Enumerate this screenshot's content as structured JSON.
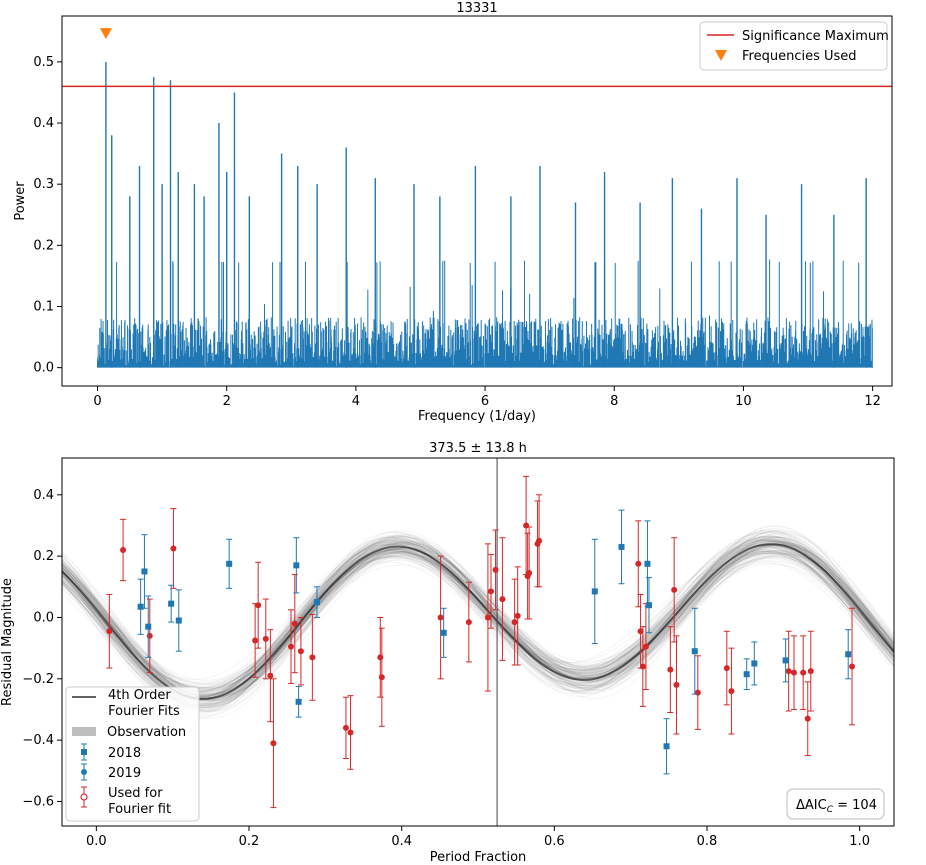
{
  "chart_data": [
    {
      "type": "line",
      "title": "13331",
      "xlabel": "Frequency (1/day)",
      "ylabel": "Power",
      "xlim": [
        -0.55,
        12.3
      ],
      "ylim": [
        -0.03,
        0.575
      ],
      "xticks": [
        "0",
        "2",
        "4",
        "6",
        "8",
        "10",
        "12"
      ],
      "yticks": [
        "0.0",
        "0.1",
        "0.2",
        "0.3",
        "0.4",
        "0.5"
      ],
      "significance_maximum": 0.46,
      "frequencies_used": [
        0.13
      ],
      "marker_y": 0.547,
      "peaks": [
        {
          "x": 0.13,
          "y": 0.5
        },
        {
          "x": 0.22,
          "y": 0.38
        },
        {
          "x": 0.5,
          "y": 0.28
        },
        {
          "x": 0.65,
          "y": 0.33
        },
        {
          "x": 0.87,
          "y": 0.475
        },
        {
          "x": 1.0,
          "y": 0.3
        },
        {
          "x": 1.13,
          "y": 0.47
        },
        {
          "x": 1.25,
          "y": 0.32
        },
        {
          "x": 1.5,
          "y": 0.3
        },
        {
          "x": 1.65,
          "y": 0.28
        },
        {
          "x": 1.88,
          "y": 0.4
        },
        {
          "x": 2.0,
          "y": 0.32
        },
        {
          "x": 2.12,
          "y": 0.45
        },
        {
          "x": 2.35,
          "y": 0.28
        },
        {
          "x": 2.85,
          "y": 0.35
        },
        {
          "x": 3.1,
          "y": 0.33
        },
        {
          "x": 3.4,
          "y": 0.3
        },
        {
          "x": 3.85,
          "y": 0.36
        },
        {
          "x": 4.3,
          "y": 0.31
        },
        {
          "x": 4.9,
          "y": 0.3
        },
        {
          "x": 5.3,
          "y": 0.28
        },
        {
          "x": 5.85,
          "y": 0.33
        },
        {
          "x": 6.4,
          "y": 0.28
        },
        {
          "x": 6.85,
          "y": 0.33
        },
        {
          "x": 7.4,
          "y": 0.27
        },
        {
          "x": 7.85,
          "y": 0.32
        },
        {
          "x": 8.4,
          "y": 0.27
        },
        {
          "x": 8.9,
          "y": 0.31
        },
        {
          "x": 9.35,
          "y": 0.26
        },
        {
          "x": 9.9,
          "y": 0.31
        },
        {
          "x": 10.35,
          "y": 0.25
        },
        {
          "x": 10.9,
          "y": 0.3
        },
        {
          "x": 11.4,
          "y": 0.25
        },
        {
          "x": 11.9,
          "y": 0.31
        }
      ],
      "legend": [
        {
          "label": "Significance Maximum",
          "color": "#d62728"
        },
        {
          "label": "Frequencies Used",
          "color": "#ff7f0e"
        }
      ],
      "series_color": "#1f77b4"
    },
    {
      "type": "scatter",
      "title": "373.5 ± 13.8 h",
      "xlabel": "Period Fraction",
      "ylabel": "Residual Magnitude",
      "xlim": [
        -0.045,
        1.045
      ],
      "ylim": [
        -0.68,
        0.52
      ],
      "xticks": [
        "0.0",
        "0.2",
        "0.4",
        "0.6",
        "0.8",
        "1.0"
      ],
      "yticks": [
        "0.4",
        "0.2",
        "0.0",
        "−0.2",
        "−0.4",
        "−0.6"
      ],
      "vline_x": 0.525,
      "fourier": {
        "mean": 0.0,
        "a1": -0.0263,
        "b1": -0.0167,
        "a2": -0.2306,
        "b2": 0.0419
      },
      "legend": [
        {
          "label": "4th Order\nFourier Fits",
          "kind": "line"
        },
        {
          "label": "Observation",
          "kind": "band"
        },
        {
          "label": "2018",
          "kind": "square"
        },
        {
          "label": "2019",
          "kind": "circle"
        },
        {
          "label": "Used for\nFourier fit",
          "kind": "open-circle"
        }
      ],
      "annotation": {
        "prefix": "ΔAIC",
        "sub": "C",
        "suffix": " = 104"
      },
      "colors": {
        "blue": "#1f77b4",
        "red": "#d62728"
      },
      "points_2018": [
        {
          "x": 0.058,
          "y": 0.035,
          "e": 0.09
        },
        {
          "x": 0.063,
          "y": 0.15,
          "e": 0.12
        },
        {
          "x": 0.068,
          "y": -0.03,
          "e": 0.1
        },
        {
          "x": 0.098,
          "y": 0.045,
          "e": 0.06
        },
        {
          "x": 0.108,
          "y": -0.01,
          "e": 0.1
        },
        {
          "x": 0.174,
          "y": 0.175,
          "e": 0.08
        },
        {
          "x": 0.262,
          "y": 0.17,
          "e": 0.09
        },
        {
          "x": 0.265,
          "y": -0.275,
          "e": 0.05
        },
        {
          "x": 0.289,
          "y": 0.05,
          "e": 0.05
        },
        {
          "x": 0.455,
          "y": -0.05,
          "e": 0.08
        },
        {
          "x": 0.653,
          "y": 0.085,
          "e": 0.17
        },
        {
          "x": 0.688,
          "y": 0.23,
          "e": 0.12
        },
        {
          "x": 0.722,
          "y": 0.175,
          "e": 0.14
        },
        {
          "x": 0.724,
          "y": 0.04,
          "e": 0.09
        },
        {
          "x": 0.747,
          "y": -0.42,
          "e": 0.09
        },
        {
          "x": 0.784,
          "y": -0.11,
          "e": 0.14
        },
        {
          "x": 0.852,
          "y": -0.185,
          "e": 0.05
        },
        {
          "x": 0.862,
          "y": -0.15,
          "e": 0.07
        },
        {
          "x": 0.903,
          "y": -0.14,
          "e": 0.07
        },
        {
          "x": 0.985,
          "y": -0.12,
          "e": 0.08
        }
      ],
      "points_red": [
        {
          "x": 0.017,
          "y": -0.045,
          "e": 0.12
        },
        {
          "x": 0.035,
          "y": 0.22,
          "e": 0.1
        },
        {
          "x": 0.07,
          "y": -0.06,
          "e": 0.12
        },
        {
          "x": 0.101,
          "y": 0.225,
          "e": 0.13
        },
        {
          "x": 0.208,
          "y": -0.075,
          "e": 0.12
        },
        {
          "x": 0.212,
          "y": 0.04,
          "e": 0.14
        },
        {
          "x": 0.222,
          "y": -0.07,
          "e": 0.13
        },
        {
          "x": 0.228,
          "y": -0.19,
          "e": 0.15
        },
        {
          "x": 0.232,
          "y": -0.41,
          "e": 0.21
        },
        {
          "x": 0.255,
          "y": -0.095,
          "e": 0.12
        },
        {
          "x": 0.26,
          "y": -0.02,
          "e": 0.16
        },
        {
          "x": 0.268,
          "y": -0.11,
          "e": 0.11
        },
        {
          "x": 0.283,
          "y": -0.13,
          "e": 0.14
        },
        {
          "x": 0.327,
          "y": -0.36,
          "e": 0.1
        },
        {
          "x": 0.333,
          "y": -0.375,
          "e": 0.12
        },
        {
          "x": 0.372,
          "y": -0.13,
          "e": 0.13
        },
        {
          "x": 0.374,
          "y": -0.195,
          "e": 0.16
        },
        {
          "x": 0.451,
          "y": 0.0,
          "e": 0.2
        },
        {
          "x": 0.488,
          "y": -0.015,
          "e": 0.13
        },
        {
          "x": 0.513,
          "y": 0.0,
          "e": 0.24
        },
        {
          "x": 0.517,
          "y": 0.085,
          "e": 0.12
        },
        {
          "x": 0.523,
          "y": 0.155,
          "e": 0.13
        },
        {
          "x": 0.532,
          "y": 0.06,
          "e": 0.2
        },
        {
          "x": 0.548,
          "y": -0.015,
          "e": 0.14
        },
        {
          "x": 0.552,
          "y": 0.005,
          "e": 0.16
        },
        {
          "x": 0.563,
          "y": 0.3,
          "e": 0.16
        },
        {
          "x": 0.565,
          "y": 0.135,
          "e": 0.14
        },
        {
          "x": 0.567,
          "y": 0.145,
          "e": 0.15
        },
        {
          "x": 0.578,
          "y": 0.24,
          "e": 0.14
        },
        {
          "x": 0.58,
          "y": 0.25,
          "e": 0.15
        },
        {
          "x": 0.71,
          "y": 0.175,
          "e": 0.14
        },
        {
          "x": 0.713,
          "y": -0.045,
          "e": 0.12
        },
        {
          "x": 0.716,
          "y": -0.16,
          "e": 0.13
        },
        {
          "x": 0.72,
          "y": -0.095,
          "e": 0.14
        },
        {
          "x": 0.752,
          "y": -0.17,
          "e": 0.14
        },
        {
          "x": 0.757,
          "y": 0.09,
          "e": 0.17
        },
        {
          "x": 0.76,
          "y": -0.22,
          "e": 0.16
        },
        {
          "x": 0.788,
          "y": -0.245,
          "e": 0.12
        },
        {
          "x": 0.826,
          "y": -0.165,
          "e": 0.12
        },
        {
          "x": 0.832,
          "y": -0.24,
          "e": 0.14
        },
        {
          "x": 0.907,
          "y": -0.175,
          "e": 0.13
        },
        {
          "x": 0.914,
          "y": -0.18,
          "e": 0.12
        },
        {
          "x": 0.926,
          "y": -0.18,
          "e": 0.12
        },
        {
          "x": 0.932,
          "y": -0.33,
          "e": 0.12
        },
        {
          "x": 0.936,
          "y": -0.175,
          "e": 0.13
        },
        {
          "x": 0.99,
          "y": -0.16,
          "e": 0.19
        }
      ]
    }
  ]
}
